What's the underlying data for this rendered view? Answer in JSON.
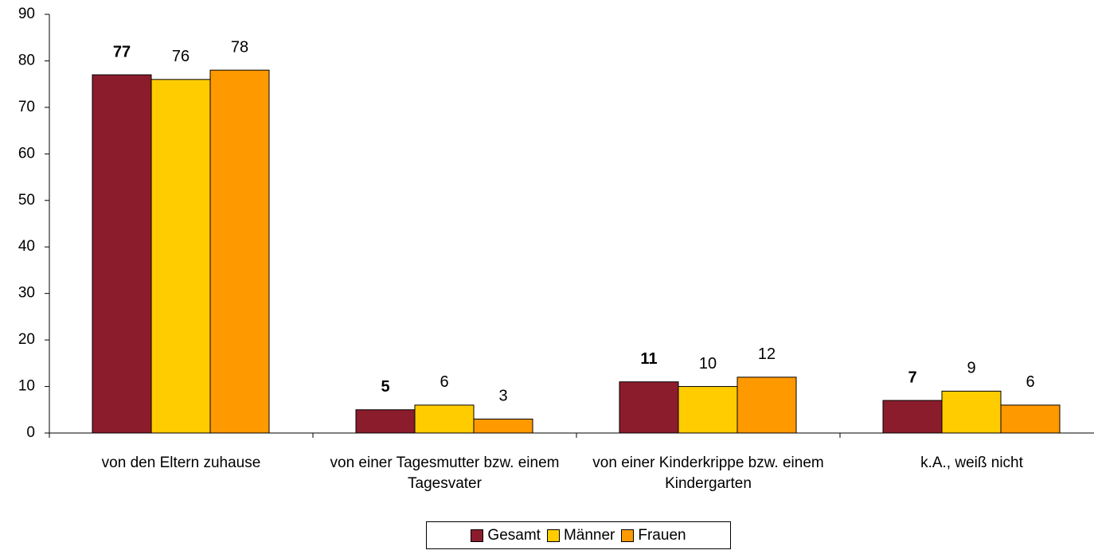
{
  "chart_data": {
    "type": "bar",
    "categories": [
      "von den Eltern zuhause",
      "von einer Tagesmutter bzw. einem Tagesvater",
      "von einer Kinderkrippe bzw. einem Kindergarten",
      "k.A., weiß nicht"
    ],
    "series": [
      {
        "name": "Gesamt",
        "color": "#8b1c2c",
        "values": [
          77,
          5,
          11,
          7
        ]
      },
      {
        "name": "Männer",
        "color": "#ffcc00",
        "values": [
          76,
          6,
          10,
          9
        ]
      },
      {
        "name": "Frauen",
        "color": "#ff9900",
        "values": [
          78,
          3,
          12,
          6
        ]
      }
    ],
    "ylim": [
      0,
      90
    ],
    "yticks": [
      0,
      10,
      20,
      30,
      40,
      50,
      60,
      70,
      80,
      90
    ],
    "legend": "bottom"
  }
}
